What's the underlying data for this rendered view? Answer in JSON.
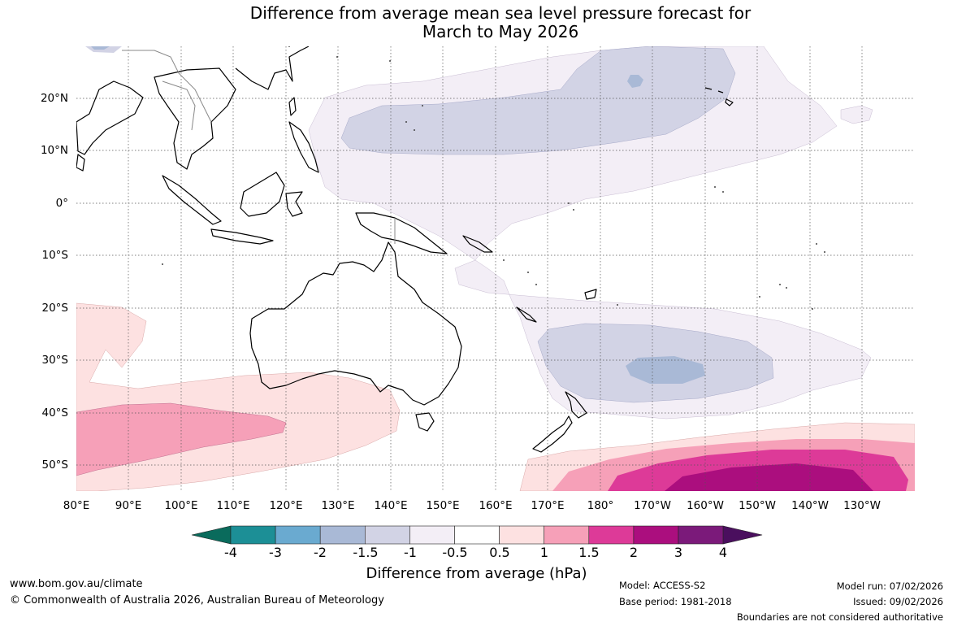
{
  "title": {
    "line1": "Difference from average mean sea level pressure forecast for",
    "line2": "March to May 2026"
  },
  "map": {
    "lat_labels": [
      "20°N",
      "10°N",
      "0°",
      "10°S",
      "20°S",
      "30°S",
      "40°S",
      "50°S"
    ],
    "lon_labels": [
      "80°E",
      "90°E",
      "100°E",
      "110°E",
      "120°E",
      "130°E",
      "140°E",
      "150°E",
      "160°E",
      "170°E",
      "180°",
      "170°W",
      "160°W",
      "150°W",
      "140°W",
      "130°W"
    ]
  },
  "colorbar": {
    "ticks": [
      "-4",
      "-3",
      "-2",
      "-1.5",
      "-1",
      "-0.5",
      "0.5",
      "1",
      "1.5",
      "2",
      "3",
      "4"
    ],
    "colors": [
      "#0a6b5c",
      "#1c8f96",
      "#6aaad0",
      "#a9b9d6",
      "#d2d3e5",
      "#f3eef6",
      "#ffffff",
      "#fde1e1",
      "#f6a0b8",
      "#dd3a98",
      "#ab0e7e",
      "#7b1a7a",
      "#4a0f5e"
    ],
    "label": "Difference from average (hPa)"
  },
  "footer": {
    "website": "www.bom.gov.au/climate",
    "copyright": "© Commonwealth of Australia 2026, Australian Bureau of Meteorology",
    "model": "Model: ACCESS-S2",
    "base_period": "Base period: 1981-2018",
    "model_run": "Model run: 07/02/2026",
    "issued": "Issued: 09/02/2026",
    "disclaimer": "Boundaries are not considered authoritative"
  }
}
